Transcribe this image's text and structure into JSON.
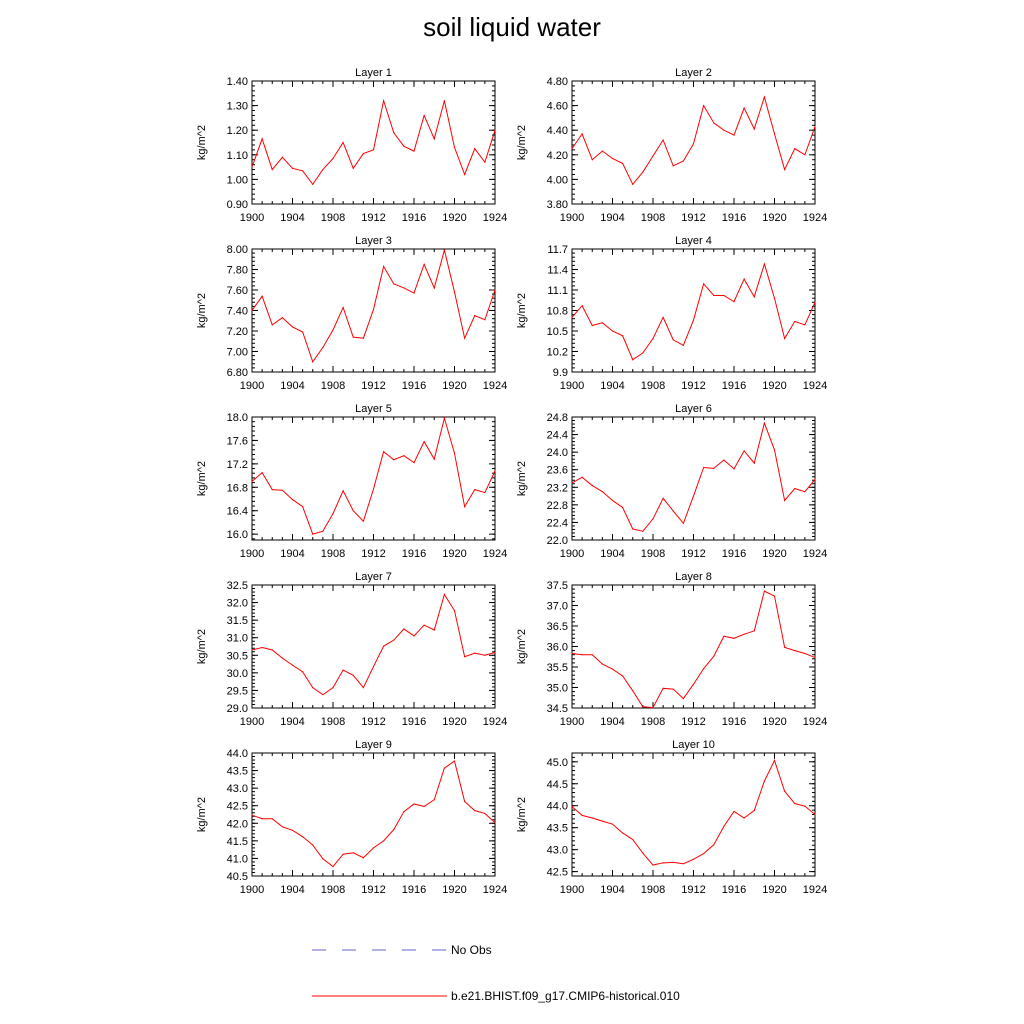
{
  "title": "soil liquid water",
  "legend": [
    {
      "label": "No Obs",
      "color": "#6666cc",
      "style": "dashed"
    },
    {
      "label": "b.e21.BHIST.f09_g17.CMIP6-historical.010",
      "color": "#ff0000",
      "style": "solid"
    }
  ],
  "chart_data": [
    {
      "type": "line",
      "title": "Layer 1",
      "ylabel": "kg/m^2",
      "xlim": [
        1900,
        1924
      ],
      "ylim": [
        0.9,
        1.4
      ],
      "x_ticks": [
        "1900",
        "1904",
        "1908",
        "1912",
        "1916",
        "1920",
        "1924"
      ],
      "y_ticks": [
        "0.90",
        "1.00",
        "1.10",
        "1.20",
        "1.30",
        "1.40"
      ],
      "x": [
        1900,
        1901,
        1902,
        1903,
        1904,
        1905,
        1906,
        1907,
        1908,
        1909,
        1910,
        1911,
        1912,
        1913,
        1914,
        1915,
        1916,
        1917,
        1918,
        1919,
        1920,
        1921,
        1922,
        1923,
        1924
      ],
      "series": [
        {
          "name": "b.e21.BHIST.f09_g17.CMIP6-historical.010",
          "color": "#ff0000",
          "values": [
            1.05,
            1.165,
            1.04,
            1.09,
            1.045,
            1.035,
            0.98,
            1.04,
            1.085,
            1.15,
            1.045,
            1.105,
            1.12,
            1.32,
            1.19,
            1.135,
            1.115,
            1.26,
            1.165,
            1.32,
            1.13,
            1.02,
            1.125,
            1.07,
            1.2
          ]
        }
      ]
    },
    {
      "type": "line",
      "title": "Layer 2",
      "ylabel": "kg/m^2",
      "xlim": [
        1900,
        1924
      ],
      "ylim": [
        3.8,
        4.8
      ],
      "x_ticks": [
        "1900",
        "1904",
        "1908",
        "1912",
        "1916",
        "1920",
        "1924"
      ],
      "y_ticks": [
        "3.80",
        "4.00",
        "4.20",
        "4.40",
        "4.60",
        "4.80"
      ],
      "x": [
        1900,
        1901,
        1902,
        1903,
        1904,
        1905,
        1906,
        1907,
        1908,
        1909,
        1910,
        1911,
        1912,
        1913,
        1914,
        1915,
        1916,
        1917,
        1918,
        1919,
        1920,
        1921,
        1922,
        1923,
        1924
      ],
      "series": [
        {
          "name": "b.e21.BHIST.f09_g17.CMIP6-historical.010",
          "color": "#ff0000",
          "values": [
            4.25,
            4.37,
            4.16,
            4.23,
            4.17,
            4.13,
            3.96,
            4.06,
            4.19,
            4.32,
            4.11,
            4.15,
            4.29,
            4.6,
            4.46,
            4.4,
            4.36,
            4.58,
            4.41,
            4.67,
            4.37,
            4.08,
            4.25,
            4.2,
            4.43
          ]
        }
      ]
    },
    {
      "type": "line",
      "title": "Layer 3",
      "ylabel": "kg/m^2",
      "xlim": [
        1900,
        1924
      ],
      "ylim": [
        6.8,
        8.0
      ],
      "x_ticks": [
        "1900",
        "1904",
        "1908",
        "1912",
        "1916",
        "1920",
        "1924"
      ],
      "y_ticks": [
        "6.80",
        "7.00",
        "7.20",
        "7.40",
        "7.60",
        "7.80",
        "8.00"
      ],
      "x": [
        1900,
        1901,
        1902,
        1903,
        1904,
        1905,
        1906,
        1907,
        1908,
        1909,
        1910,
        1911,
        1912,
        1913,
        1914,
        1915,
        1916,
        1917,
        1918,
        1919,
        1920,
        1921,
        1922,
        1923,
        1924
      ],
      "series": [
        {
          "name": "b.e21.BHIST.f09_g17.CMIP6-historical.010",
          "color": "#ff0000",
          "values": [
            7.4,
            7.54,
            7.26,
            7.33,
            7.24,
            7.19,
            6.9,
            7.04,
            7.21,
            7.43,
            7.14,
            7.13,
            7.41,
            7.83,
            7.66,
            7.62,
            7.57,
            7.85,
            7.62,
            7.99,
            7.58,
            7.13,
            7.35,
            7.31,
            7.6
          ]
        }
      ]
    },
    {
      "type": "line",
      "title": "Layer 4",
      "ylabel": "kg/m^2",
      "xlim": [
        1900,
        1924
      ],
      "ylim": [
        9.9,
        11.7
      ],
      "x_ticks": [
        "1900",
        "1904",
        "1908",
        "1912",
        "1916",
        "1920",
        "1924"
      ],
      "y_ticks": [
        "9.9",
        "10.2",
        "10.5",
        "10.8",
        "11.1",
        "11.4",
        "11.7"
      ],
      "x": [
        1900,
        1901,
        1902,
        1903,
        1904,
        1905,
        1906,
        1907,
        1908,
        1909,
        1910,
        1911,
        1912,
        1913,
        1914,
        1915,
        1916,
        1917,
        1918,
        1919,
        1920,
        1921,
        1922,
        1923,
        1924
      ],
      "series": [
        {
          "name": "b.e21.BHIST.f09_g17.CMIP6-historical.010",
          "color": "#ff0000",
          "values": [
            10.7,
            10.87,
            10.58,
            10.62,
            10.5,
            10.43,
            10.08,
            10.18,
            10.39,
            10.7,
            10.37,
            10.29,
            10.66,
            11.19,
            11.02,
            11.02,
            10.93,
            11.26,
            11.0,
            11.48,
            10.98,
            10.39,
            10.64,
            10.59,
            10.92
          ]
        }
      ]
    },
    {
      "type": "line",
      "title": "Layer 5",
      "ylabel": "kg/m^2",
      "xlim": [
        1900,
        1924
      ],
      "ylim": [
        15.9,
        18.0
      ],
      "x_ticks": [
        "1900",
        "1904",
        "1908",
        "1912",
        "1916",
        "1920",
        "1924"
      ],
      "y_ticks": [
        "16.0",
        "16.4",
        "16.8",
        "17.2",
        "17.6",
        "18.0"
      ],
      "x": [
        1900,
        1901,
        1902,
        1903,
        1904,
        1905,
        1906,
        1907,
        1908,
        1909,
        1910,
        1911,
        1912,
        1913,
        1914,
        1915,
        1916,
        1917,
        1918,
        1919,
        1920,
        1921,
        1922,
        1923,
        1924
      ],
      "series": [
        {
          "name": "b.e21.BHIST.f09_g17.CMIP6-historical.010",
          "color": "#ff0000",
          "values": [
            16.9,
            17.05,
            16.76,
            16.75,
            16.59,
            16.47,
            16.0,
            16.05,
            16.35,
            16.74,
            16.4,
            16.22,
            16.77,
            17.41,
            17.27,
            17.34,
            17.22,
            17.58,
            17.28,
            17.98,
            17.38,
            16.47,
            16.76,
            16.71,
            17.08
          ]
        }
      ]
    },
    {
      "type": "line",
      "title": "Layer 6",
      "ylabel": "kg/m^2",
      "xlim": [
        1900,
        1924
      ],
      "ylim": [
        22.0,
        24.8
      ],
      "x_ticks": [
        "1900",
        "1904",
        "1908",
        "1912",
        "1916",
        "1920",
        "1924"
      ],
      "y_ticks": [
        "22.0",
        "22.4",
        "22.8",
        "23.2",
        "23.6",
        "24.0",
        "24.4",
        "24.8"
      ],
      "x": [
        1900,
        1901,
        1902,
        1903,
        1904,
        1905,
        1906,
        1907,
        1908,
        1909,
        1910,
        1911,
        1912,
        1913,
        1914,
        1915,
        1916,
        1917,
        1918,
        1919,
        1920,
        1921,
        1922,
        1923,
        1924
      ],
      "series": [
        {
          "name": "b.e21.BHIST.f09_g17.CMIP6-historical.010",
          "color": "#ff0000",
          "values": [
            23.3,
            23.43,
            23.24,
            23.1,
            22.9,
            22.74,
            22.25,
            22.2,
            22.48,
            22.95,
            22.66,
            22.38,
            23.0,
            23.65,
            23.63,
            23.82,
            23.62,
            24.03,
            23.75,
            24.66,
            24.05,
            22.9,
            23.17,
            23.1,
            23.38
          ]
        }
      ]
    },
    {
      "type": "line",
      "title": "Layer 7",
      "ylabel": "kg/m^2",
      "xlim": [
        1900,
        1924
      ],
      "ylim": [
        29.0,
        32.5
      ],
      "x_ticks": [
        "1900",
        "1904",
        "1908",
        "1912",
        "1916",
        "1920",
        "1924"
      ],
      "y_ticks": [
        "29.0",
        "29.5",
        "30.0",
        "30.5",
        "31.0",
        "31.5",
        "32.0",
        "32.5"
      ],
      "x": [
        1900,
        1901,
        1902,
        1903,
        1904,
        1905,
        1906,
        1907,
        1908,
        1909,
        1910,
        1911,
        1912,
        1913,
        1914,
        1915,
        1916,
        1917,
        1918,
        1919,
        1920,
        1921,
        1922,
        1923,
        1924
      ],
      "series": [
        {
          "name": "b.e21.BHIST.f09_g17.CMIP6-historical.010",
          "color": "#ff0000",
          "values": [
            30.65,
            30.72,
            30.65,
            30.42,
            30.22,
            30.03,
            29.58,
            29.38,
            29.58,
            30.08,
            29.93,
            29.58,
            30.18,
            30.76,
            30.93,
            31.25,
            31.05,
            31.36,
            31.22,
            32.23,
            31.77,
            30.46,
            30.56,
            30.5,
            30.58
          ]
        }
      ]
    },
    {
      "type": "line",
      "title": "Layer 8",
      "ylabel": "kg/m^2",
      "xlim": [
        1900,
        1924
      ],
      "ylim": [
        34.5,
        37.5
      ],
      "x_ticks": [
        "1900",
        "1904",
        "1908",
        "1912",
        "1916",
        "1920",
        "1924"
      ],
      "y_ticks": [
        "34.5",
        "35.0",
        "35.5",
        "36.0",
        "36.5",
        "37.0",
        "37.5"
      ],
      "x": [
        1900,
        1901,
        1902,
        1903,
        1904,
        1905,
        1906,
        1907,
        1908,
        1909,
        1910,
        1911,
        1912,
        1913,
        1914,
        1915,
        1916,
        1917,
        1918,
        1919,
        1920,
        1921,
        1922,
        1923,
        1924
      ],
      "series": [
        {
          "name": "b.e21.BHIST.f09_g17.CMIP6-historical.010",
          "color": "#ff0000",
          "values": [
            35.83,
            35.8,
            35.8,
            35.57,
            35.45,
            35.28,
            34.92,
            34.53,
            34.51,
            34.98,
            34.96,
            34.73,
            35.08,
            35.46,
            35.76,
            36.25,
            36.2,
            36.3,
            36.38,
            37.35,
            37.23,
            35.98,
            35.9,
            35.83,
            35.73
          ]
        }
      ]
    },
    {
      "type": "line",
      "title": "Layer 9",
      "ylabel": "kg/m^2",
      "xlim": [
        1900,
        1924
      ],
      "ylim": [
        40.5,
        44.0
      ],
      "x_ticks": [
        "1900",
        "1904",
        "1908",
        "1912",
        "1916",
        "1920",
        "1924"
      ],
      "y_ticks": [
        "40.5",
        "41.0",
        "41.5",
        "42.0",
        "42.5",
        "43.0",
        "43.5",
        "44.0"
      ],
      "x": [
        1900,
        1901,
        1902,
        1903,
        1904,
        1905,
        1906,
        1907,
        1908,
        1909,
        1910,
        1911,
        1912,
        1913,
        1914,
        1915,
        1916,
        1917,
        1918,
        1919,
        1920,
        1921,
        1922,
        1923,
        1924
      ],
      "series": [
        {
          "name": "b.e21.BHIST.f09_g17.CMIP6-historical.010",
          "color": "#ff0000",
          "values": [
            42.23,
            42.13,
            42.13,
            41.9,
            41.8,
            41.62,
            41.38,
            40.99,
            40.77,
            41.12,
            41.16,
            41.02,
            41.3,
            41.5,
            41.82,
            42.33,
            42.55,
            42.48,
            42.67,
            43.57,
            43.77,
            42.62,
            42.36,
            42.28,
            42.02
          ]
        }
      ]
    },
    {
      "type": "line",
      "title": "Layer 10",
      "ylabel": "kg/m^2",
      "xlim": [
        1900,
        1924
      ],
      "ylim": [
        42.4,
        45.2
      ],
      "x_ticks": [
        "1900",
        "1904",
        "1908",
        "1912",
        "1916",
        "1920",
        "1924"
      ],
      "y_ticks": [
        "42.5",
        "43.0",
        "43.5",
        "44.0",
        "44.5",
        "45.0"
      ],
      "x": [
        1900,
        1901,
        1902,
        1903,
        1904,
        1905,
        1906,
        1907,
        1908,
        1909,
        1910,
        1911,
        1912,
        1913,
        1914,
        1915,
        1916,
        1917,
        1918,
        1919,
        1920,
        1921,
        1922,
        1923,
        1924
      ],
      "series": [
        {
          "name": "b.e21.BHIST.f09_g17.CMIP6-historical.010",
          "color": "#ff0000",
          "values": [
            43.98,
            43.78,
            43.72,
            43.65,
            43.58,
            43.38,
            43.23,
            42.92,
            42.65,
            42.7,
            42.71,
            42.68,
            42.78,
            42.91,
            43.11,
            43.53,
            43.87,
            43.72,
            43.89,
            44.56,
            45.03,
            44.33,
            44.05,
            43.99,
            43.8
          ]
        }
      ]
    }
  ]
}
